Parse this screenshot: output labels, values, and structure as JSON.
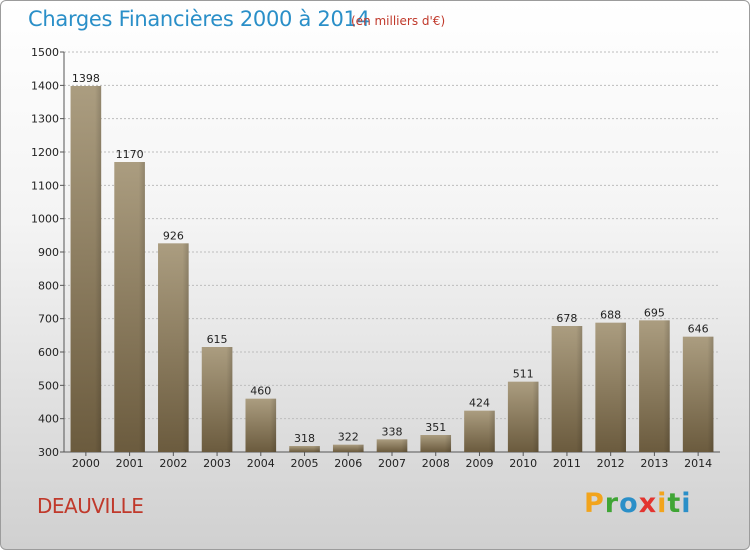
{
  "header": {
    "title": "Charges Financières 2000 à 2014",
    "subtitle": "(en milliers d'€)"
  },
  "footer": {
    "city": "DEAUVILLE",
    "logo": "Proxiti"
  },
  "colors": {
    "title": "#2a8fc8",
    "accent_red": "#c0392b",
    "bar_light": "#a89a7c",
    "bar_dark": "#6e5e40"
  },
  "chart_data": {
    "type": "bar",
    "categories": [
      "2000",
      "2001",
      "2002",
      "2003",
      "2004",
      "2005",
      "2006",
      "2007",
      "2008",
      "2009",
      "2010",
      "2011",
      "2012",
      "2013",
      "2014"
    ],
    "values": [
      1398,
      1170,
      926,
      615,
      460,
      318,
      322,
      338,
      351,
      424,
      511,
      678,
      688,
      695,
      646
    ],
    "title": "Charges Financières 2000 à 2014",
    "subtitle": "(en milliers d'€)",
    "xlabel": "",
    "ylabel": "",
    "ylim": [
      300,
      1500
    ],
    "yticks": [
      300,
      400,
      500,
      600,
      700,
      800,
      900,
      1000,
      1100,
      1200,
      1300,
      1400,
      1500
    ],
    "grid": true,
    "legend": "none"
  }
}
